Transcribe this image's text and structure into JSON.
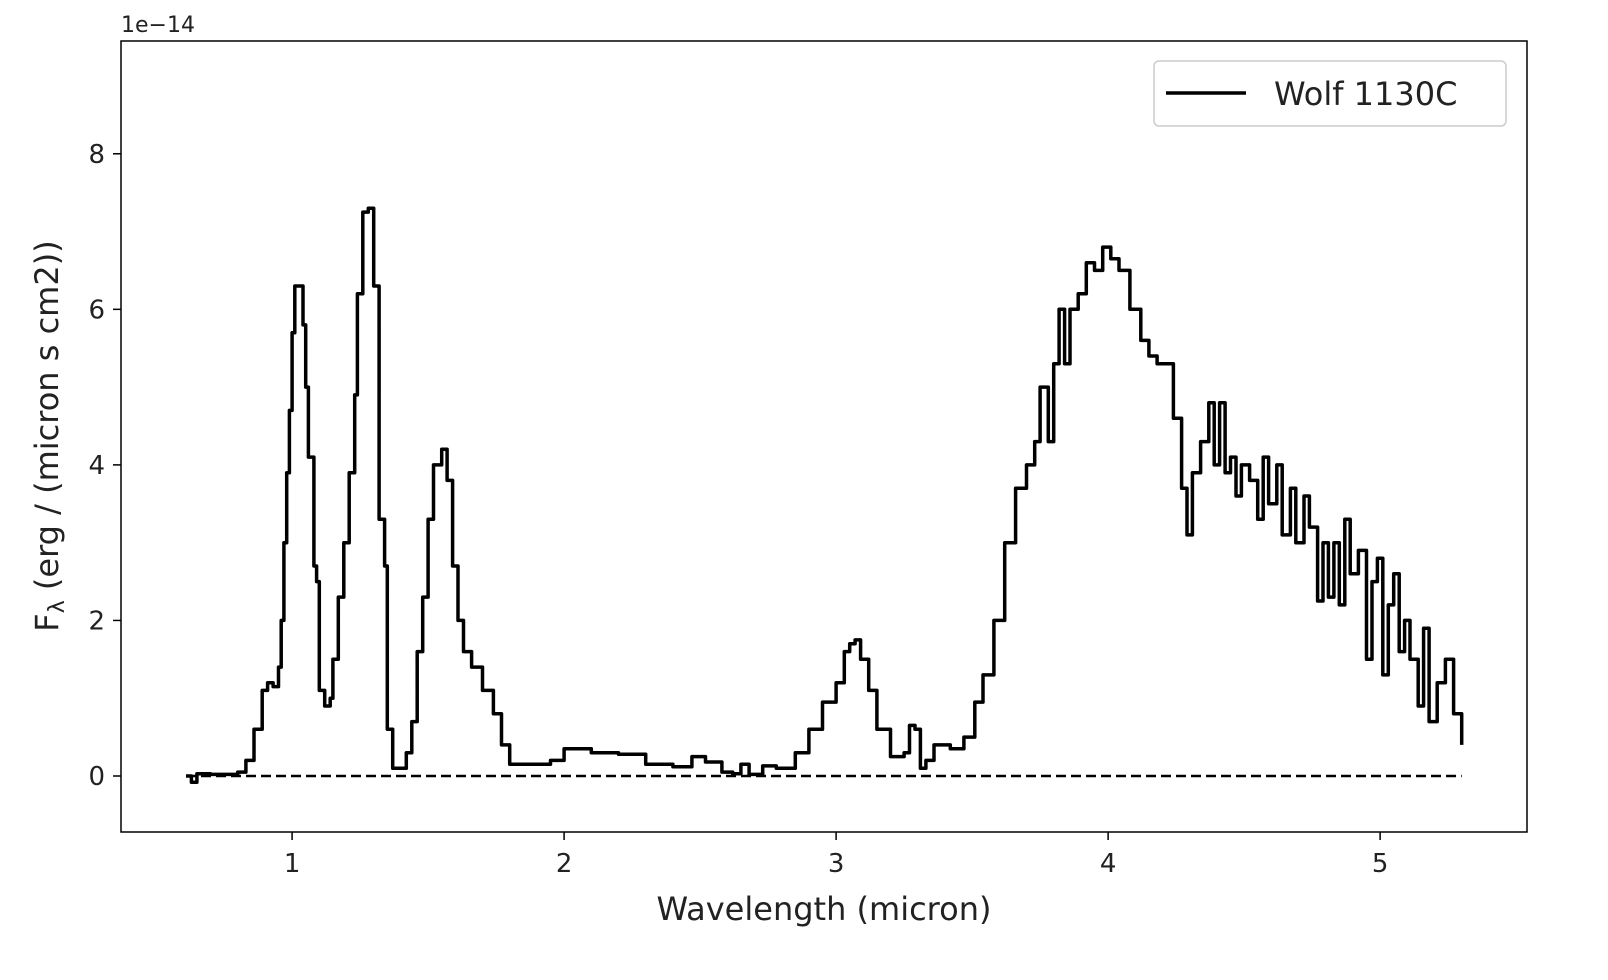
{
  "chart_data": {
    "type": "line",
    "title": "",
    "xlabel": "Wavelength (micron)",
    "ylabel": "Fλ (erg / (micron s cm2))",
    "ylabel_main": "F",
    "ylabel_sub": "λ",
    "ylabel_rest": " (erg / (micron s cm2))",
    "y_offset_text": "1e−14",
    "xlim": [
      0.371,
      5.54
    ],
    "ylim": [
      -0.72,
      9.45
    ],
    "xticks": [
      1,
      2,
      3,
      4,
      5
    ],
    "xtick_labels": [
      "1",
      "2",
      "3",
      "4",
      "5"
    ],
    "yticks": [
      0,
      2,
      4,
      6,
      8
    ],
    "ytick_labels": [
      "0",
      "2",
      "4",
      "6",
      "8"
    ],
    "grid": false,
    "legend": {
      "position": "top-right",
      "entries": [
        "Wolf 1130C"
      ]
    },
    "colors": {
      "series": "#000000",
      "zero_line": "#000000"
    },
    "zero_line": {
      "x": [
        0.61,
        5.3
      ],
      "y": 0
    },
    "series": [
      {
        "name": "Wolf 1130C",
        "x": [
          0.61,
          0.63,
          0.65,
          0.7,
          0.75,
          0.8,
          0.83,
          0.86,
          0.89,
          0.91,
          0.93,
          0.95,
          0.96,
          0.97,
          0.98,
          0.99,
          1.0,
          1.01,
          1.03,
          1.04,
          1.05,
          1.06,
          1.08,
          1.09,
          1.1,
          1.12,
          1.14,
          1.15,
          1.17,
          1.19,
          1.21,
          1.23,
          1.24,
          1.26,
          1.28,
          1.3,
          1.32,
          1.34,
          1.35,
          1.37,
          1.4,
          1.42,
          1.44,
          1.46,
          1.48,
          1.5,
          1.52,
          1.55,
          1.57,
          1.59,
          1.61,
          1.63,
          1.66,
          1.7,
          1.74,
          1.77,
          1.8,
          1.85,
          1.9,
          1.95,
          2.0,
          2.05,
          2.1,
          2.2,
          2.3,
          2.4,
          2.47,
          2.52,
          2.58,
          2.62,
          2.65,
          2.68,
          2.73,
          2.78,
          2.85,
          2.9,
          2.95,
          3.0,
          3.03,
          3.05,
          3.07,
          3.09,
          3.12,
          3.15,
          3.2,
          3.25,
          3.27,
          3.29,
          3.31,
          3.33,
          3.36,
          3.42,
          3.47,
          3.51,
          3.54,
          3.58,
          3.62,
          3.66,
          3.7,
          3.73,
          3.75,
          3.78,
          3.8,
          3.82,
          3.84,
          3.86,
          3.89,
          3.92,
          3.95,
          3.98,
          4.01,
          4.04,
          4.08,
          4.12,
          4.15,
          4.18,
          4.21,
          4.24,
          4.27,
          4.29,
          4.31,
          4.34,
          4.37,
          4.39,
          4.41,
          4.43,
          4.45,
          4.47,
          4.49,
          4.52,
          4.55,
          4.57,
          4.59,
          4.62,
          4.64,
          4.67,
          4.69,
          4.72,
          4.74,
          4.77,
          4.79,
          4.81,
          4.83,
          4.85,
          4.87,
          4.89,
          4.92,
          4.95,
          4.97,
          4.99,
          5.01,
          5.03,
          5.05,
          5.07,
          5.09,
          5.11,
          5.14,
          5.16,
          5.18,
          5.21,
          5.24,
          5.27,
          5.3
        ],
        "y": [
          0.0,
          -0.08,
          0.03,
          0.02,
          0.02,
          0.05,
          0.2,
          0.6,
          1.1,
          1.2,
          1.15,
          1.4,
          2.0,
          3.0,
          3.9,
          4.7,
          5.7,
          6.3,
          6.3,
          5.8,
          5.0,
          4.1,
          2.7,
          2.5,
          1.1,
          0.9,
          1.0,
          1.5,
          2.3,
          3.0,
          3.9,
          4.9,
          6.2,
          7.25,
          7.3,
          6.3,
          3.3,
          2.7,
          0.6,
          0.1,
          0.1,
          0.3,
          0.7,
          1.6,
          2.3,
          3.3,
          4.0,
          4.2,
          3.8,
          2.7,
          2.0,
          1.6,
          1.4,
          1.1,
          0.8,
          0.4,
          0.15,
          0.15,
          0.15,
          0.2,
          0.35,
          0.35,
          0.3,
          0.28,
          0.15,
          0.12,
          0.25,
          0.18,
          0.05,
          0.03,
          0.15,
          0.02,
          0.13,
          0.1,
          0.3,
          0.6,
          0.95,
          1.2,
          1.6,
          1.7,
          1.75,
          1.5,
          1.1,
          0.6,
          0.25,
          0.3,
          0.65,
          0.6,
          0.1,
          0.2,
          0.4,
          0.35,
          0.5,
          0.95,
          1.3,
          2.0,
          3.0,
          3.7,
          4.0,
          4.3,
          5.0,
          4.3,
          5.3,
          6.0,
          5.3,
          6.0,
          6.2,
          6.6,
          6.5,
          6.8,
          6.65,
          6.5,
          6.0,
          5.6,
          5.4,
          5.3,
          5.3,
          4.6,
          3.7,
          3.1,
          3.9,
          4.3,
          4.8,
          4.0,
          4.8,
          3.9,
          4.1,
          3.6,
          4.0,
          3.8,
          3.3,
          4.1,
          3.5,
          4.0,
          3.1,
          3.7,
          3.0,
          3.6,
          3.2,
          2.25,
          3.0,
          2.3,
          3.0,
          2.2,
          3.3,
          2.6,
          2.9,
          1.5,
          2.5,
          2.8,
          1.3,
          2.2,
          2.6,
          1.6,
          2.0,
          1.5,
          0.9,
          1.9,
          0.7,
          1.2,
          1.5,
          0.8,
          0.4
        ]
      }
    ]
  }
}
